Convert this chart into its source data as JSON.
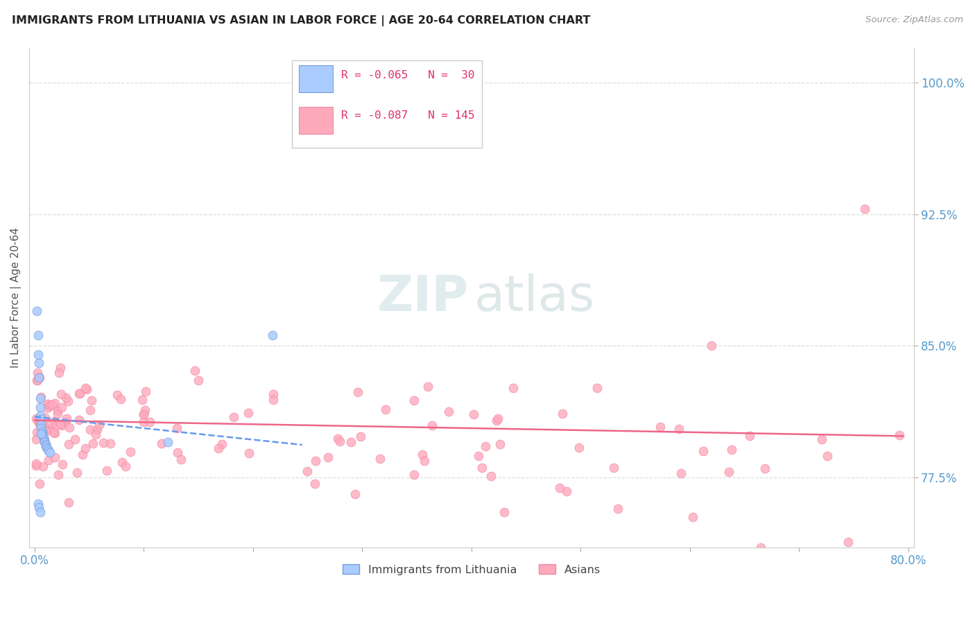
{
  "title": "IMMIGRANTS FROM LITHUANIA VS ASIAN IN LABOR FORCE | AGE 20-64 CORRELATION CHART",
  "source": "Source: ZipAtlas.com",
  "ylabel": "In Labor Force | Age 20-64",
  "xlim": [
    -0.005,
    0.805
  ],
  "ylim": [
    0.735,
    1.02
  ],
  "xtick_positions": [
    0.0,
    0.1,
    0.2,
    0.3,
    0.4,
    0.5,
    0.6,
    0.7,
    0.8
  ],
  "xticklabels": [
    "0.0%",
    "",
    "",
    "",
    "",
    "",
    "",
    "",
    "80.0%"
  ],
  "ytick_vals": [
    1.0,
    0.925,
    0.85,
    0.775
  ],
  "ytick_labels": [
    "100.0%",
    "92.5%",
    "85.0%",
    "77.5%"
  ],
  "grid_color": "#dddddd",
  "blue_color": "#aaccff",
  "blue_edge": "#7799dd",
  "pink_color": "#ffaabb",
  "pink_edge": "#ee88aa",
  "blue_line_color": "#6699ee",
  "pink_line_color": "#ee6688",
  "title_color": "#222222",
  "source_color": "#999999",
  "axis_label_color": "#555555",
  "tick_color": "#5599cc",
  "watermark_zip_color": "#c8dde0",
  "watermark_atlas_color": "#b8cdd0",
  "legend_border_color": "#cccccc",
  "blue_R": "-0.065",
  "blue_N": "30",
  "pink_R": "-0.087",
  "pink_N": "145",
  "legend_text_color": "#dd3366",
  "bottom_legend_color": "#444444",
  "blue_trend_x": [
    0.0,
    0.245
  ],
  "blue_trend_y": [
    0.8095,
    0.7935
  ],
  "pink_trend_x": [
    0.0,
    0.795
  ],
  "pink_trend_y": [
    0.8075,
    0.7985
  ]
}
